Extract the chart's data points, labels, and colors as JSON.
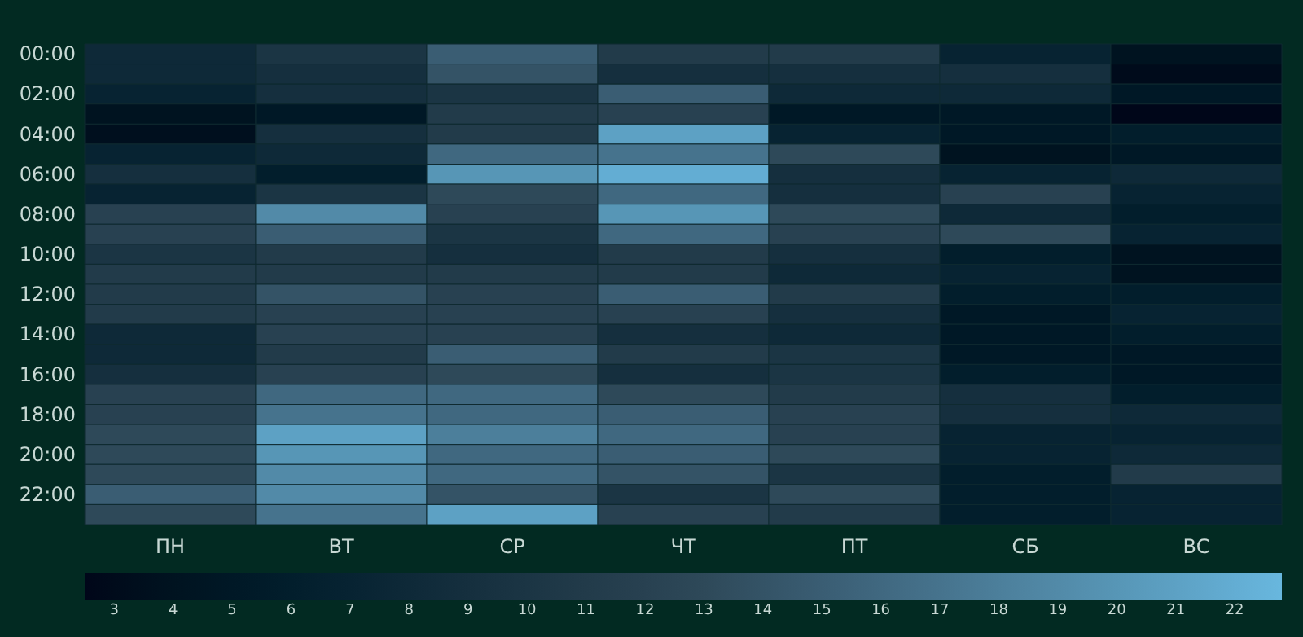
{
  "chart_data": {
    "type": "heatmap",
    "categories": [
      "ПН",
      "ВТ",
      "СР",
      "ЧТ",
      "ПТ",
      "СБ",
      "ВС"
    ],
    "y_categories": [
      "00:00",
      null,
      "02:00",
      null,
      "04:00",
      null,
      "06:00",
      null,
      "08:00",
      null,
      "10:00",
      null,
      "12:00",
      null,
      "14:00",
      null,
      "16:00",
      null,
      "18:00",
      null,
      "20:00",
      null,
      "22:00",
      null
    ],
    "cells": [
      [
        8,
        10,
        15,
        11,
        11,
        7,
        4
      ],
      [
        8,
        9,
        14,
        9,
        9,
        9,
        3
      ],
      [
        7,
        9,
        10,
        15,
        8,
        8,
        5
      ],
      [
        4,
        5,
        11,
        12,
        5,
        5,
        2.5
      ],
      [
        3.5,
        9,
        11,
        21,
        7,
        5,
        6
      ],
      [
        7,
        8,
        16,
        17,
        13,
        4,
        5
      ],
      [
        9,
        6,
        20,
        22,
        9,
        7,
        8
      ],
      [
        7,
        10,
        13,
        16,
        9,
        12,
        7
      ],
      [
        12,
        19,
        12,
        20,
        13,
        8,
        6
      ],
      [
        12,
        15,
        10,
        16,
        12,
        13,
        7
      ],
      [
        10,
        11,
        9,
        11,
        9,
        6,
        4
      ],
      [
        11,
        11,
        11,
        11,
        8,
        7,
        4
      ],
      [
        11,
        14,
        12,
        15,
        11,
        6,
        6
      ],
      [
        11,
        12,
        12,
        12,
        9,
        5,
        7
      ],
      [
        8,
        12,
        12,
        9,
        8,
        5,
        6
      ],
      [
        8,
        11,
        15,
        11,
        10,
        5,
        5
      ],
      [
        9,
        12,
        13,
        9,
        10,
        6,
        5
      ],
      [
        12,
        16,
        16,
        13,
        11,
        9,
        6
      ],
      [
        12,
        17,
        16,
        15,
        12,
        9,
        8
      ],
      [
        13,
        21,
        18,
        16,
        12,
        7,
        7
      ],
      [
        13,
        20,
        16,
        15,
        13,
        7,
        8
      ],
      [
        13,
        19,
        16,
        14,
        10,
        6,
        11
      ],
      [
        15,
        19,
        14,
        10,
        13,
        6,
        7
      ],
      [
        13,
        17,
        21,
        12,
        11,
        6,
        7
      ]
    ],
    "clim": [
      2.5,
      22.8
    ],
    "cticks": [
      3,
      4,
      5,
      6,
      7,
      8,
      9,
      10,
      11,
      12,
      13,
      14,
      15,
      16,
      17,
      18,
      19,
      20,
      21,
      22
    ],
    "colors": [
      "#000000",
      "#2c4555",
      "#68b7de"
    ]
  }
}
